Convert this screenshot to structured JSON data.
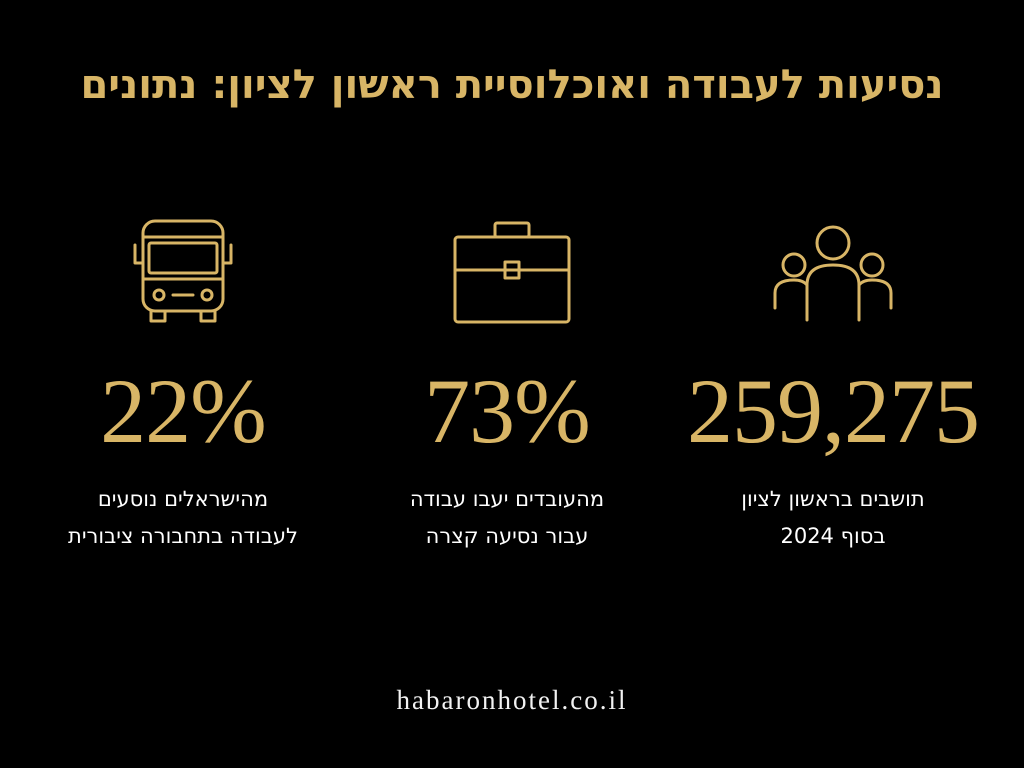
{
  "header": {
    "title": "נסיעות לעבודה ואוכלוסיית ראשון לציון: נתונים"
  },
  "stats": [
    {
      "number": "259,275",
      "lines": [
        "תושבים בראשון לציון",
        "בסוף 2024"
      ]
    },
    {
      "number": "73%",
      "lines": [
        "מהעובדים יעבו עבודה",
        "עבור נסיעה קצרה"
      ]
    },
    {
      "number": "22%",
      "lines": [
        "מהישראלים נוסעים",
        "לעבודה בתחבורה ציבורית"
      ]
    }
  ],
  "footer": {
    "site": "habaronhotel.co.il"
  }
}
